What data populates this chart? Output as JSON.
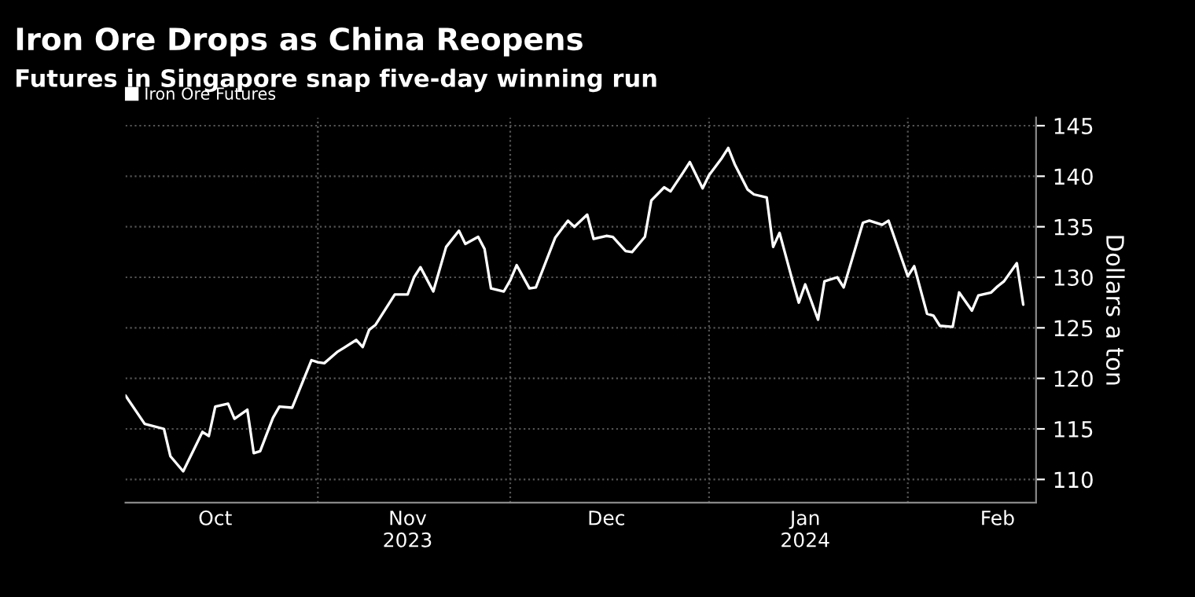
{
  "chart_data": {
    "type": "line",
    "title": "Iron Ore Drops as China Reopens",
    "subtitle": "Futures in Singapore snap five-day winning run",
    "ylabel": "Dollars a ton",
    "x": [
      "2023-10-02",
      "2023-10-05",
      "2023-10-08",
      "2023-10-09",
      "2023-10-11",
      "2023-10-14",
      "2023-10-15",
      "2023-10-16",
      "2023-10-18",
      "2023-10-19",
      "2023-10-21",
      "2023-10-22",
      "2023-10-23",
      "2023-10-25",
      "2023-10-26",
      "2023-10-28",
      "2023-10-31",
      "2023-11-01",
      "2023-11-02",
      "2023-11-04",
      "2023-11-05",
      "2023-11-07",
      "2023-11-08",
      "2023-11-09",
      "2023-11-10",
      "2023-11-13",
      "2023-11-15",
      "2023-11-16",
      "2023-11-17",
      "2023-11-19",
      "2023-11-21",
      "2023-11-23",
      "2023-11-24",
      "2023-11-26",
      "2023-11-27",
      "2023-11-28",
      "2023-11-30",
      "2023-12-01",
      "2023-12-02",
      "2023-12-04",
      "2023-12-05",
      "2023-12-08",
      "2023-12-10",
      "2023-12-11",
      "2023-12-13",
      "2023-12-14",
      "2023-12-16",
      "2023-12-17",
      "2023-12-19",
      "2023-12-20",
      "2023-12-22",
      "2023-12-23",
      "2023-12-25",
      "2023-12-26",
      "2023-12-28",
      "2023-12-29",
      "2023-12-31",
      "2024-01-01",
      "2024-01-03",
      "2024-01-04",
      "2024-01-05",
      "2024-01-07",
      "2024-01-08",
      "2024-01-10",
      "2024-01-11",
      "2024-01-12",
      "2024-01-14",
      "2024-01-15",
      "2024-01-16",
      "2024-01-18",
      "2024-01-19",
      "2024-01-21",
      "2024-01-22",
      "2024-01-25",
      "2024-01-26",
      "2024-01-28",
      "2024-01-29",
      "2024-02-01",
      "2024-02-02",
      "2024-02-04",
      "2024-02-05",
      "2024-02-06",
      "2024-02-08",
      "2024-02-09",
      "2024-02-11",
      "2024-02-12",
      "2024-02-14",
      "2024-02-15",
      "2024-02-16",
      "2024-02-18",
      "2024-02-19"
    ],
    "series": [
      {
        "name": "Iron Ore Futures",
        "color": "#ffffff",
        "values": [
          118.3,
          115.5,
          115.0,
          112.3,
          110.8,
          114.7,
          114.3,
          117.2,
          117.5,
          116.0,
          116.9,
          112.6,
          112.8,
          116.1,
          117.2,
          117.1,
          121.8,
          121.6,
          121.5,
          122.6,
          123.0,
          123.8,
          123.1,
          124.8,
          125.3,
          128.3,
          128.3,
          130.0,
          131.0,
          128.6,
          133.0,
          134.6,
          133.3,
          134.0,
          132.8,
          128.9,
          128.6,
          129.7,
          131.2,
          128.9,
          129.0,
          133.9,
          135.6,
          135.0,
          136.2,
          133.8,
          134.1,
          134.0,
          132.6,
          132.5,
          134.0,
          137.6,
          138.9,
          138.5,
          140.4,
          141.4,
          138.8,
          140.1,
          141.8,
          142.8,
          141.2,
          138.7,
          138.2,
          137.9,
          133.0,
          134.4,
          129.7,
          127.5,
          129.3,
          125.8,
          129.6,
          130.0,
          129.0,
          135.4,
          135.6,
          135.2,
          135.6,
          130.1,
          131.1,
          126.4,
          126.2,
          125.2,
          125.1,
          128.5,
          126.7,
          128.2,
          128.5,
          129.1,
          129.6,
          131.4,
          127.3
        ]
      }
    ],
    "xlim": [
      "2023-10-02",
      "2024-02-21"
    ],
    "xticks": [
      {
        "value": "2023-10-16",
        "label": "Oct"
      },
      {
        "value": "2023-11-01",
        "label": null
      },
      {
        "value": "2023-11-15",
        "label": "Nov\n2023"
      },
      {
        "value": "2023-12-01",
        "label": null
      },
      {
        "value": "2023-12-16",
        "label": "Dec"
      },
      {
        "value": "2024-01-01",
        "label": null
      },
      {
        "value": "2024-01-16",
        "label": "Jan\n2024"
      },
      {
        "value": "2024-02-01",
        "label": null
      },
      {
        "value": "2024-02-15",
        "label": "Feb"
      }
    ],
    "ylim": [
      107.7,
      145.8
    ],
    "yticks": [
      110,
      115,
      120,
      125,
      130,
      135,
      140,
      145
    ],
    "grid": true,
    "legend": "top left",
    "marker": "none",
    "line_style": "solid"
  }
}
